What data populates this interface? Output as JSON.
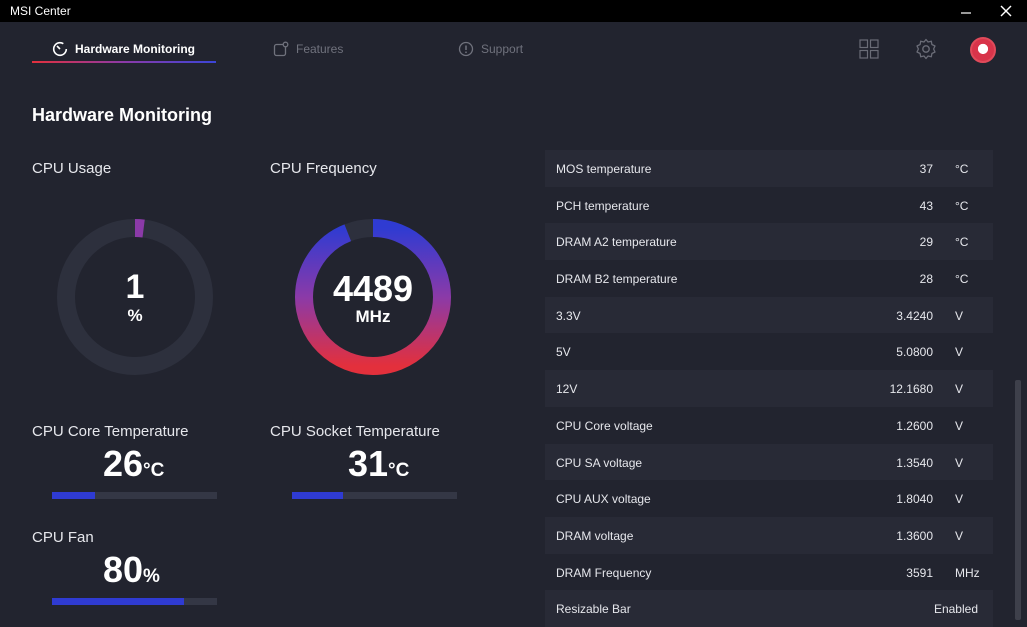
{
  "window": {
    "title": "MSI Center"
  },
  "nav": {
    "tabs": [
      {
        "label": "Hardware Monitoring",
        "icon": "gauge-icon",
        "active": true
      },
      {
        "label": "Features",
        "icon": "features-icon",
        "active": false
      },
      {
        "label": "Support",
        "icon": "support-icon",
        "active": false
      }
    ],
    "icons": [
      "grid-icon",
      "gear-icon",
      "avatar"
    ]
  },
  "page": {
    "title": "Hardware Monitoring"
  },
  "cpu_usage": {
    "label": "CPU Usage",
    "value": "1",
    "unit": "%",
    "percent": 1
  },
  "cpu_frequency": {
    "label": "CPU Frequency",
    "value": "4489",
    "unit": "MHz",
    "fraction": 0.94
  },
  "cpu_core_temp": {
    "label": "CPU Core Temperature",
    "value": "26",
    "unit": "°C",
    "fraction": 0.26
  },
  "cpu_socket_temp": {
    "label": "CPU Socket Temperature",
    "value": "31",
    "unit": "°C",
    "fraction": 0.31
  },
  "cpu_fan": {
    "label": "CPU Fan",
    "value": "80",
    "unit": "%",
    "fraction": 0.8
  },
  "sensors": [
    {
      "name": "MOS temperature",
      "value": "37",
      "unit": "°C"
    },
    {
      "name": "PCH temperature",
      "value": "43",
      "unit": "°C"
    },
    {
      "name": "DRAM A2 temperature",
      "value": "29",
      "unit": "°C"
    },
    {
      "name": "DRAM B2 temperature",
      "value": "28",
      "unit": "°C"
    },
    {
      "name": "3.3V",
      "value": "3.4240",
      "unit": "V"
    },
    {
      "name": "5V",
      "value": "5.0800",
      "unit": "V"
    },
    {
      "name": "12V",
      "value": "12.1680",
      "unit": "V"
    },
    {
      "name": "CPU Core voltage",
      "value": "1.2600",
      "unit": "V"
    },
    {
      "name": "CPU SA voltage",
      "value": "1.3540",
      "unit": "V"
    },
    {
      "name": "CPU AUX voltage",
      "value": "1.8040",
      "unit": "V"
    },
    {
      "name": "DRAM voltage",
      "value": "1.3600",
      "unit": "V"
    },
    {
      "name": "DRAM Frequency",
      "value": "3591",
      "unit": "MHz"
    },
    {
      "name": "Resizable Bar",
      "value": "Enabled",
      "unit": ""
    }
  ],
  "colors": {
    "background": "#22242f",
    "accent_blue": "#2f3bd2",
    "accent_red": "#e3303c",
    "accent_purple": "#8b3aa8"
  }
}
